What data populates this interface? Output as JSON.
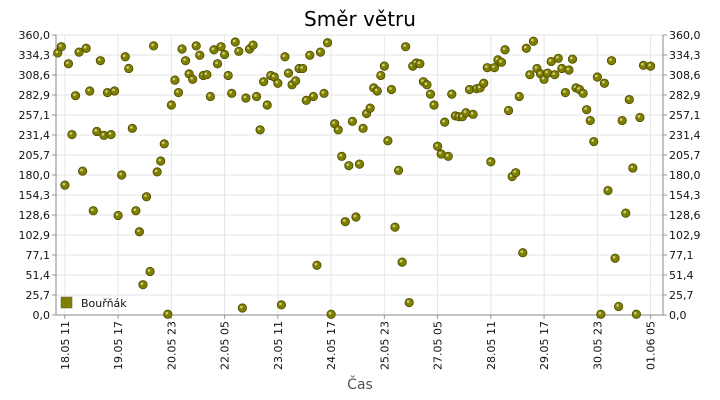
{
  "chart_data": {
    "type": "scatter",
    "title": "Směr větru",
    "xlabel": "Čas",
    "ylabel": "°",
    "ylim": [
      0,
      360
    ],
    "yticks": [
      "0,0",
      "25,7",
      "51,4",
      "77,1",
      "102,9",
      "128,6",
      "154,3",
      "180,0",
      "205,7",
      "231,4",
      "257,1",
      "282,9",
      "308,6",
      "334,3",
      "360,0"
    ],
    "xlim": [
      "2021-05-18 06:00",
      "2021-06-01 12:00"
    ],
    "xticks": [
      {
        "label": "18.05 11",
        "t": "2021-05-18 11:00"
      },
      {
        "label": "19.05 17",
        "t": "2021-05-19 17:00"
      },
      {
        "label": "20.05 23",
        "t": "2021-05-20 23:00"
      },
      {
        "label": "22.05 05",
        "t": "2021-05-22 05:00"
      },
      {
        "label": "23.05 11",
        "t": "2021-05-23 11:00"
      },
      {
        "label": "24.05 17",
        "t": "2021-05-24 17:00"
      },
      {
        "label": "25.05 23",
        "t": "2021-05-25 23:00"
      },
      {
        "label": "27.05 05",
        "t": "2021-05-27 05:00"
      },
      {
        "label": "28.05 11",
        "t": "2021-05-28 11:00"
      },
      {
        "label": "29.05 17",
        "t": "2021-05-29 17:00"
      },
      {
        "label": "30.05 23",
        "t": "2021-05-30 23:00"
      },
      {
        "label": "01.06 05",
        "t": "2021-06-01 05:00"
      }
    ],
    "grid": true,
    "legend_position": "bottom-left",
    "series": [
      {
        "name": "Bouřňák",
        "color": "#808000",
        "points": [
          [
            "2021-05-18 07:00",
            337
          ],
          [
            "2021-05-18 09:00",
            345
          ],
          [
            "2021-05-18 11:00",
            167
          ],
          [
            "2021-05-18 13:00",
            323
          ],
          [
            "2021-05-18 15:00",
            232
          ],
          [
            "2021-05-18 17:00",
            282
          ],
          [
            "2021-05-18 19:00",
            338
          ],
          [
            "2021-05-18 21:00",
            185
          ],
          [
            "2021-05-18 23:00",
            343
          ],
          [
            "2021-05-19 01:00",
            288
          ],
          [
            "2021-05-19 03:00",
            134
          ],
          [
            "2021-05-19 05:00",
            236
          ],
          [
            "2021-05-19 07:00",
            327
          ],
          [
            "2021-05-19 09:00",
            231
          ],
          [
            "2021-05-19 11:00",
            286
          ],
          [
            "2021-05-19 13:00",
            232
          ],
          [
            "2021-05-19 15:00",
            288
          ],
          [
            "2021-05-19 17:00",
            128
          ],
          [
            "2021-05-19 19:00",
            180
          ],
          [
            "2021-05-19 21:00",
            332
          ],
          [
            "2021-05-19 23:00",
            317
          ],
          [
            "2021-05-20 01:00",
            240
          ],
          [
            "2021-05-20 03:00",
            134
          ],
          [
            "2021-05-20 05:00",
            107
          ],
          [
            "2021-05-20 07:00",
            39
          ],
          [
            "2021-05-20 09:00",
            152
          ],
          [
            "2021-05-20 11:00",
            56
          ],
          [
            "2021-05-20 13:00",
            346
          ],
          [
            "2021-05-20 15:00",
            184
          ],
          [
            "2021-05-20 17:00",
            198
          ],
          [
            "2021-05-20 19:00",
            220
          ],
          [
            "2021-05-20 21:00",
            1
          ],
          [
            "2021-05-20 23:00",
            270
          ],
          [
            "2021-05-21 01:00",
            302
          ],
          [
            "2021-05-21 03:00",
            286
          ],
          [
            "2021-05-21 05:00",
            342
          ],
          [
            "2021-05-21 07:00",
            327
          ],
          [
            "2021-05-21 09:00",
            310
          ],
          [
            "2021-05-21 11:00",
            303
          ],
          [
            "2021-05-21 13:00",
            346
          ],
          [
            "2021-05-21 15:00",
            334
          ],
          [
            "2021-05-21 17:00",
            308
          ],
          [
            "2021-05-21 19:00",
            309
          ],
          [
            "2021-05-21 21:00",
            281
          ],
          [
            "2021-05-21 23:00",
            341
          ],
          [
            "2021-05-22 01:00",
            323
          ],
          [
            "2021-05-22 03:00",
            345
          ],
          [
            "2021-05-22 05:00",
            335
          ],
          [
            "2021-05-22 07:00",
            308
          ],
          [
            "2021-05-22 09:00",
            285
          ],
          [
            "2021-05-22 11:00",
            351
          ],
          [
            "2021-05-22 13:00",
            339
          ],
          [
            "2021-05-22 15:00",
            9
          ],
          [
            "2021-05-22 17:00",
            279
          ],
          [
            "2021-05-22 19:00",
            342
          ],
          [
            "2021-05-22 21:00",
            347
          ],
          [
            "2021-05-22 23:00",
            281
          ],
          [
            "2021-05-23 01:00",
            238
          ],
          [
            "2021-05-23 03:00",
            300
          ],
          [
            "2021-05-23 05:00",
            270
          ],
          [
            "2021-05-23 07:00",
            308
          ],
          [
            "2021-05-23 09:00",
            306
          ],
          [
            "2021-05-23 11:00",
            298
          ],
          [
            "2021-05-23 13:00",
            13
          ],
          [
            "2021-05-23 15:00",
            332
          ],
          [
            "2021-05-23 17:00",
            311
          ],
          [
            "2021-05-23 19:00",
            296
          ],
          [
            "2021-05-23 21:00",
            301
          ],
          [
            "2021-05-23 23:00",
            317
          ],
          [
            "2021-05-24 01:00",
            317
          ],
          [
            "2021-05-24 03:00",
            276
          ],
          [
            "2021-05-24 05:00",
            334
          ],
          [
            "2021-05-24 07:00",
            281
          ],
          [
            "2021-05-24 09:00",
            64
          ],
          [
            "2021-05-24 11:00",
            338
          ],
          [
            "2021-05-24 13:00",
            285
          ],
          [
            "2021-05-24 15:00",
            350
          ],
          [
            "2021-05-24 17:00",
            1
          ],
          [
            "2021-05-24 19:00",
            246
          ],
          [
            "2021-05-24 21:00",
            238
          ],
          [
            "2021-05-24 23:00",
            204
          ],
          [
            "2021-05-25 01:00",
            120
          ],
          [
            "2021-05-25 03:00",
            192
          ],
          [
            "2021-05-25 05:00",
            249
          ],
          [
            "2021-05-25 07:00",
            126
          ],
          [
            "2021-05-25 09:00",
            194
          ],
          [
            "2021-05-25 11:00",
            240
          ],
          [
            "2021-05-25 13:00",
            259
          ],
          [
            "2021-05-25 15:00",
            266
          ],
          [
            "2021-05-25 17:00",
            292
          ],
          [
            "2021-05-25 19:00",
            288
          ],
          [
            "2021-05-25 21:00",
            308
          ],
          [
            "2021-05-25 23:00",
            320
          ],
          [
            "2021-05-26 01:00",
            224
          ],
          [
            "2021-05-26 03:00",
            290
          ],
          [
            "2021-05-26 05:00",
            113
          ],
          [
            "2021-05-26 07:00",
            186
          ],
          [
            "2021-05-26 09:00",
            68
          ],
          [
            "2021-05-26 11:00",
            345
          ],
          [
            "2021-05-26 13:00",
            16
          ],
          [
            "2021-05-26 15:00",
            320
          ],
          [
            "2021-05-26 17:00",
            324
          ],
          [
            "2021-05-26 19:00",
            323
          ],
          [
            "2021-05-26 21:00",
            300
          ],
          [
            "2021-05-26 23:00",
            296
          ],
          [
            "2021-05-27 01:00",
            284
          ],
          [
            "2021-05-27 03:00",
            270
          ],
          [
            "2021-05-27 05:00",
            217
          ],
          [
            "2021-05-27 07:00",
            207
          ],
          [
            "2021-05-27 09:00",
            248
          ],
          [
            "2021-05-27 11:00",
            204
          ],
          [
            "2021-05-27 13:00",
            284
          ],
          [
            "2021-05-27 15:00",
            256
          ],
          [
            "2021-05-27 17:00",
            255
          ],
          [
            "2021-05-27 19:00",
            255
          ],
          [
            "2021-05-27 21:00",
            260
          ],
          [
            "2021-05-27 23:00",
            290
          ],
          [
            "2021-05-28 01:00",
            258
          ],
          [
            "2021-05-28 03:00",
            291
          ],
          [
            "2021-05-28 05:00",
            292
          ],
          [
            "2021-05-28 07:00",
            298
          ],
          [
            "2021-05-28 09:00",
            318
          ],
          [
            "2021-05-28 11:00",
            197
          ],
          [
            "2021-05-28 13:00",
            318
          ],
          [
            "2021-05-28 15:00",
            328
          ],
          [
            "2021-05-28 17:00",
            325
          ],
          [
            "2021-05-28 19:00",
            341
          ],
          [
            "2021-05-28 21:00",
            263
          ],
          [
            "2021-05-28 23:00",
            178
          ],
          [
            "2021-05-29 01:00",
            183
          ],
          [
            "2021-05-29 03:00",
            281
          ],
          [
            "2021-05-29 05:00",
            80
          ],
          [
            "2021-05-29 07:00",
            343
          ],
          [
            "2021-05-29 09:00",
            309
          ],
          [
            "2021-05-29 11:00",
            352
          ],
          [
            "2021-05-29 13:00",
            317
          ],
          [
            "2021-05-29 15:00",
            310
          ],
          [
            "2021-05-29 17:00",
            303
          ],
          [
            "2021-05-29 19:00",
            311
          ],
          [
            "2021-05-29 21:00",
            326
          ],
          [
            "2021-05-29 23:00",
            309
          ],
          [
            "2021-05-30 01:00",
            330
          ],
          [
            "2021-05-30 03:00",
            317
          ],
          [
            "2021-05-30 05:00",
            286
          ],
          [
            "2021-05-30 07:00",
            315
          ],
          [
            "2021-05-30 09:00",
            329
          ],
          [
            "2021-05-30 11:00",
            292
          ],
          [
            "2021-05-30 13:00",
            290
          ],
          [
            "2021-05-30 15:00",
            285
          ],
          [
            "2021-05-30 17:00",
            264
          ],
          [
            "2021-05-30 19:00",
            250
          ],
          [
            "2021-05-30 21:00",
            223
          ],
          [
            "2021-05-30 23:00",
            306
          ],
          [
            "2021-05-31 01:00",
            1
          ],
          [
            "2021-05-31 03:00",
            298
          ],
          [
            "2021-05-31 05:00",
            160
          ],
          [
            "2021-05-31 07:00",
            327
          ],
          [
            "2021-05-31 09:00",
            73
          ],
          [
            "2021-05-31 11:00",
            11
          ],
          [
            "2021-05-31 13:00",
            250
          ],
          [
            "2021-05-31 15:00",
            131
          ],
          [
            "2021-05-31 17:00",
            277
          ],
          [
            "2021-05-31 19:00",
            189
          ],
          [
            "2021-05-31 21:00",
            1
          ],
          [
            "2021-05-31 23:00",
            254
          ],
          [
            "2021-06-01 01:00",
            321
          ],
          [
            "2021-06-01 05:00",
            320
          ]
        ]
      }
    ]
  }
}
